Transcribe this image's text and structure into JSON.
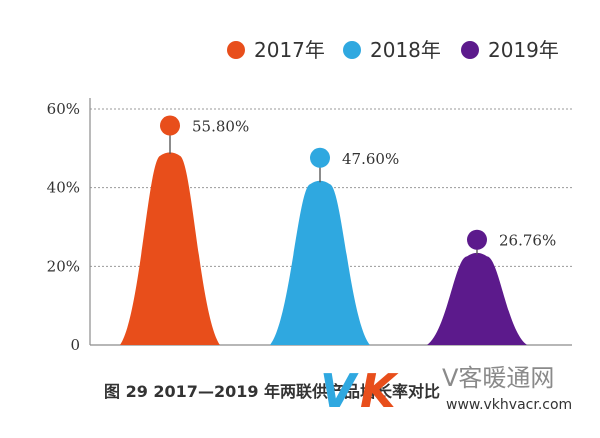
{
  "chart_data": {
    "type": "bar",
    "categories": [
      "2017年",
      "2018年",
      "2019年"
    ],
    "values": [
      55.8,
      47.6,
      26.76
    ],
    "value_labels": [
      "55.80%",
      "47.60%",
      "26.76%"
    ],
    "colors": [
      "#e84e1b",
      "#2fa8e0",
      "#5c1a8c"
    ],
    "ylim": [
      0,
      60
    ],
    "yticks": [
      0,
      20,
      40,
      60
    ],
    "ytick_labels": [
      "0",
      "20%",
      "40%",
      "60%"
    ],
    "grid": true,
    "legend_position": "top-right"
  },
  "caption": "图 29   2017—2019 年两联供产品增长率对比",
  "watermark": {
    "logo": "VK",
    "name": "V客暖通网",
    "url": "www.vkhvacr.com"
  }
}
